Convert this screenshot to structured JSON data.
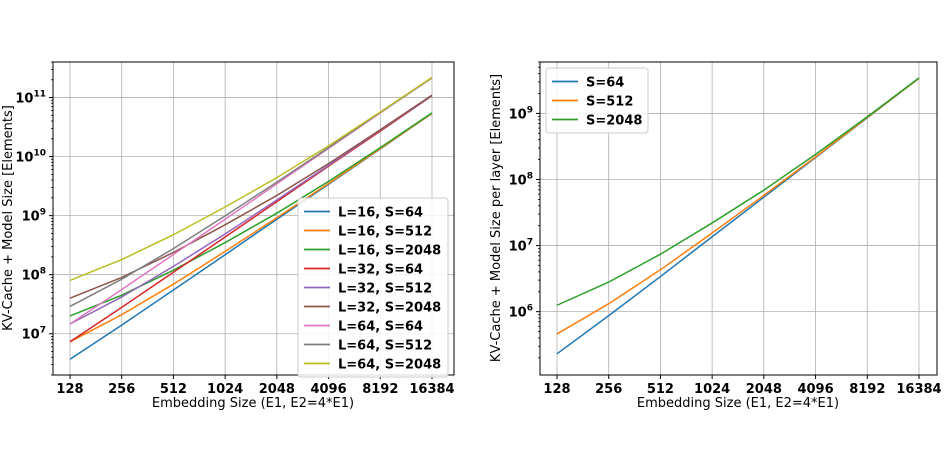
{
  "chart_data": [
    {
      "type": "line",
      "x": [
        128,
        256,
        512,
        1024,
        2048,
        4096,
        8192,
        16384
      ],
      "x_tick_labels": [
        "128",
        "256",
        "512",
        "1024",
        "2048",
        "4096",
        "8192",
        "16384"
      ],
      "xscale": "log2",
      "yscale": "log10",
      "xlabel": "Embedding Size (E1, E2=4*E1)",
      "ylabel": "KV-Cache + Model Size [Elements]",
      "ylim": [
        2000000.0,
        400000000000.0
      ],
      "y_ticks": [
        {
          "value": 10000000.0,
          "mantissa": "10",
          "exp": "7"
        },
        {
          "value": 100000000.0,
          "mantissa": "10",
          "exp": "8"
        },
        {
          "value": 1000000000.0,
          "mantissa": "10",
          "exp": "9"
        },
        {
          "value": 10000000000.0,
          "mantissa": "10",
          "exp": "10"
        },
        {
          "value": 100000000000.0,
          "mantissa": "10",
          "exp": "11"
        }
      ],
      "grid": true,
      "legend_position": "lower-right",
      "series": [
        {
          "name": "L=16, S=64",
          "color": "#1f77b4",
          "values": [
            3700000.0,
            14000000.0,
            55000000.0,
            218000000.0,
            870000000.0,
            3400000000.0,
            13500000000.0,
            54000000000.0
          ]
        },
        {
          "name": "L=16, S=512",
          "color": "#ff7f0e",
          "values": [
            7300000.0,
            21000000.0,
            69000000.0,
            248000000.0,
            920000000.0,
            3500000000.0,
            13700000000.0,
            54000000000.0
          ]
        },
        {
          "name": "L=16, S=2048",
          "color": "#2ca02c",
          "values": [
            20000000.0,
            45000000.0,
            119000000.0,
            350000000.0,
            1100000000.0,
            3800000000.0,
            14200000000.0,
            55000000000.0
          ]
        },
        {
          "name": "L=32, S=64",
          "color": "#d62728",
          "values": [
            7300000.0,
            28000000.0,
            110000000.0,
            435000000.0,
            1730000000.0,
            6900000000.0,
            27000000000.0,
            107000000000.0
          ]
        },
        {
          "name": "L=32, S=512",
          "color": "#9467bd",
          "values": [
            14600000.0,
            42000000.0,
            138000000.0,
            490000000.0,
            1840000000.0,
            7100000000.0,
            28000000000.0,
            108000000000.0
          ]
        },
        {
          "name": "L=32, S=2048",
          "color": "#8c564b",
          "values": [
            40000000.0,
            90000000.0,
            238000000.0,
            700000000.0,
            2200000000.0,
            7600000000.0,
            28500000000.0,
            110000000000.0
          ]
        },
        {
          "name": "L=64, S=64",
          "color": "#e377c2",
          "values": [
            14600000.0,
            56000000.0,
            220000000.0,
            870000000.0,
            3460000000.0,
            13800000000.0,
            55000000000.0,
            215000000000.0
          ]
        },
        {
          "name": "L=64, S=512",
          "color": "#7f7f7f",
          "values": [
            29000000.0,
            84000000.0,
            276000000.0,
            990000000.0,
            3700000000.0,
            14200000000.0,
            56000000000.0,
            216000000000.0
          ]
        },
        {
          "name": "L=64, S=2048",
          "color": "#bcbd22",
          "values": [
            80000000.0,
            180000000.0,
            475000000.0,
            1400000000.0,
            4400000000.0,
            15200000000.0,
            57000000000.0,
            220000000000.0
          ]
        }
      ]
    },
    {
      "type": "line",
      "x": [
        128,
        256,
        512,
        1024,
        2048,
        4096,
        8192,
        16384
      ],
      "x_tick_labels": [
        "128",
        "256",
        "512",
        "1024",
        "2048",
        "4096",
        "8192",
        "16384"
      ],
      "xscale": "log2",
      "yscale": "log10",
      "xlabel": "Embedding Size (E1, E2=4*E1)",
      "ylabel": "KV-Cache + Model Size per layer [Elements]",
      "ylim": [
        110000.0,
        6000000000.0
      ],
      "y_ticks": [
        {
          "value": 1000000.0,
          "mantissa": "10",
          "exp": "6"
        },
        {
          "value": 10000000.0,
          "mantissa": "10",
          "exp": "7"
        },
        {
          "value": 100000000.0,
          "mantissa": "10",
          "exp": "8"
        },
        {
          "value": 1000000000.0,
          "mantissa": "10",
          "exp": "9"
        }
      ],
      "grid": true,
      "legend_position": "upper-left",
      "series": [
        {
          "name": "S=64",
          "color": "#1f77b4",
          "values": [
            230000.0,
            870000.0,
            3400000.0,
            13600000.0,
            54000000.0,
            215000000.0,
            860000000.0,
            3400000000.0
          ]
        },
        {
          "name": "S=512",
          "color": "#ff7f0e",
          "values": [
            460000.0,
            1320000.0,
            4300000.0,
            15500000.0,
            57500000.0,
            220000000.0,
            870000000.0,
            3400000000.0
          ]
        },
        {
          "name": "S=2048",
          "color": "#2ca02c",
          "values": [
            1250000.0,
            2800000.0,
            7400000.0,
            22000000.0,
            69000000.0,
            240000000.0,
            890000000.0,
            3450000000.0
          ]
        }
      ]
    }
  ]
}
